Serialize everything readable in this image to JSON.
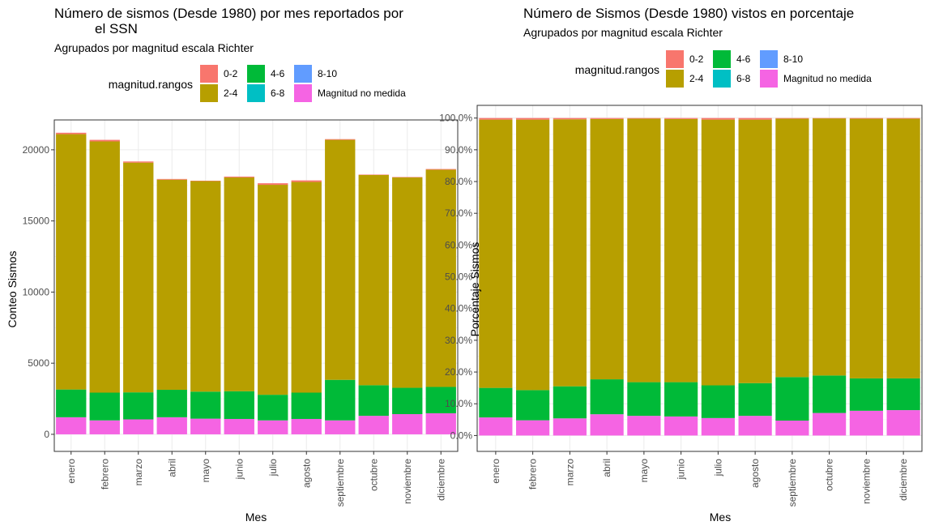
{
  "chart_data": [
    {
      "type": "bar",
      "stacked": true,
      "title": "Número de sismos (Desde 1980) por mes reportados por el SSN",
      "title_lines": [
        "Número de sismos (Desde 1980) por mes reportados por",
        "el SSN"
      ],
      "subtitle": "Agrupados por magnitud escala Richter",
      "xlabel": "Mes",
      "ylabel": "Conteo Sismos",
      "ylim": [
        -1200,
        22100
      ],
      "yticks": [
        0,
        5000,
        10000,
        15000,
        20000
      ],
      "ytick_labels": [
        "0",
        "5000",
        "10000",
        "15000",
        "20000"
      ],
      "grid": true,
      "legend": {
        "title": "magnitud.rangos",
        "position": "top",
        "entries": [
          "0-2",
          "2-4",
          "4-6",
          "6-8",
          "8-10",
          "Magnitud no medida"
        ]
      },
      "categories": [
        "enero",
        "febrero",
        "marzo",
        "abril",
        "mayo",
        "junio",
        "julio",
        "agosto",
        "septiembre",
        "octubre",
        "noviembre",
        "diciembre"
      ],
      "series": [
        {
          "name": "Magnitud no medida",
          "values": [
            1200,
            980,
            1050,
            1200,
            1100,
            1080,
            980,
            1080,
            980,
            1300,
            1420,
            1480
          ]
        },
        {
          "name": "8-10",
          "values": [
            0,
            0,
            0,
            0,
            0,
            0,
            0,
            0,
            0,
            0,
            0,
            0
          ]
        },
        {
          "name": "6-8",
          "values": [
            0,
            0,
            0,
            0,
            0,
            0,
            0,
            0,
            0,
            0,
            0,
            0
          ]
        },
        {
          "name": "4-6",
          "values": [
            1950,
            1950,
            1900,
            1930,
            1900,
            1950,
            1800,
            1850,
            2850,
            2150,
            1850,
            1850
          ]
        },
        {
          "name": "2-4",
          "values": [
            17950,
            17660,
            16150,
            14770,
            14800,
            15030,
            14760,
            14810,
            16870,
            14780,
            14790,
            15270
          ]
        },
        {
          "name": "0-2",
          "values": [
            100,
            110,
            80,
            50,
            30,
            60,
            110,
            110,
            50,
            30,
            30,
            50
          ]
        }
      ]
    },
    {
      "type": "bar",
      "stacked": true,
      "title": "Número de Sismos (Desde 1980) vistos en porcentaje",
      "subtitle": "Agrupados por magnitud escala Richter",
      "xlabel": "Mes",
      "ylabel": "Porcentaje Sismos",
      "ylim": [
        -0.05,
        1.04
      ],
      "yticks": [
        0,
        0.1,
        0.2,
        0.3,
        0.4,
        0.5,
        0.6,
        0.7,
        0.8,
        0.9,
        1.0
      ],
      "ytick_labels": [
        "0.0%",
        "10.0%",
        "20.0%",
        "30.0%",
        "40.0%",
        "50.0%",
        "60.0%",
        "70.0%",
        "80.0%",
        "90.0%",
        "100.0%"
      ],
      "grid": true,
      "legend": {
        "title": "magnitud.rangos",
        "position": "top",
        "entries": [
          "0-2",
          "2-4",
          "4-6",
          "6-8",
          "8-10",
          "Magnitud no medida"
        ]
      },
      "categories": [
        "enero",
        "febrero",
        "marzo",
        "abril",
        "mayo",
        "junio",
        "julio",
        "agosto",
        "septiembre",
        "octubre",
        "noviembre",
        "diciembre"
      ],
      "series": [
        {
          "name": "Magnitud no medida",
          "values": [
            0.057,
            0.048,
            0.054,
            0.067,
            0.062,
            0.06,
            0.055,
            0.062,
            0.047,
            0.071,
            0.078,
            0.08
          ]
        },
        {
          "name": "8-10",
          "values": [
            0,
            0,
            0,
            0,
            0,
            0,
            0,
            0,
            0,
            0,
            0,
            0
          ]
        },
        {
          "name": "6-8",
          "values": [
            0,
            0,
            0,
            0,
            0,
            0,
            0,
            0,
            0,
            0,
            0,
            0
          ]
        },
        {
          "name": "4-6",
          "values": [
            0.093,
            0.095,
            0.101,
            0.11,
            0.106,
            0.108,
            0.103,
            0.103,
            0.137,
            0.118,
            0.102,
            0.1
          ]
        },
        {
          "name": "2-4",
          "values": [
            0.845,
            0.852,
            0.841,
            0.82,
            0.83,
            0.829,
            0.837,
            0.83,
            0.814,
            0.81,
            0.818,
            0.818
          ]
        },
        {
          "name": "0-2",
          "values": [
            0.005,
            0.005,
            0.004,
            0.003,
            0.002,
            0.003,
            0.005,
            0.005,
            0.002,
            0.001,
            0.002,
            0.002
          ]
        }
      ]
    }
  ],
  "colors": {
    "0-2": "#F8766D",
    "2-4": "#B79F00",
    "4-6": "#00BA38",
    "6-8": "#00BFC4",
    "8-10": "#619CFF",
    "Magnitud no medida": "#F564E3"
  }
}
